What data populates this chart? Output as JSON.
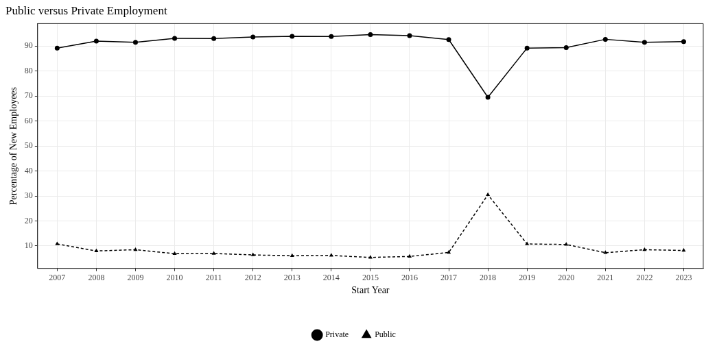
{
  "chart_data": {
    "type": "line",
    "title": "Public versus Private Employment",
    "xlabel": "Start Year",
    "ylabel": "Percentage of New Employees",
    "categories": [
      "2007",
      "2008",
      "2009",
      "2010",
      "2011",
      "2012",
      "2013",
      "2014",
      "2015",
      "2016",
      "2017",
      "2018",
      "2019",
      "2020",
      "2021",
      "2022",
      "2023"
    ],
    "series": [
      {
        "name": "Private",
        "color": "#000000",
        "marker": "circle",
        "line_style": "solid",
        "values": [
          89.2,
          92.0,
          91.5,
          93.1,
          93.0,
          93.6,
          93.9,
          93.8,
          94.6,
          94.2,
          92.6,
          69.5,
          89.2,
          89.4,
          92.7,
          91.5,
          91.8
        ]
      },
      {
        "name": "Public",
        "color": "#000000",
        "marker": "triangle",
        "line_style": "dashed",
        "values": [
          10.8,
          8.0,
          8.5,
          6.9,
          7.0,
          6.4,
          6.1,
          6.2,
          5.4,
          5.8,
          7.4,
          30.5,
          10.8,
          10.6,
          7.3,
          8.5,
          8.2
        ]
      }
    ],
    "ylim": [
      1,
      99
    ],
    "yticks": [
      10,
      20,
      30,
      40,
      50,
      60,
      70,
      80,
      90
    ],
    "grid": true,
    "legend": "bottom"
  }
}
